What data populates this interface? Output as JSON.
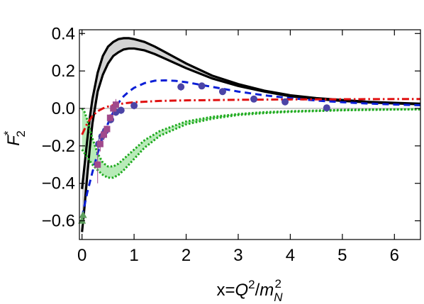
{
  "chart_data": {
    "type": "line",
    "title": "",
    "xlabel": {
      "prefix": "x=",
      "var": "Q",
      "sup": "2",
      "slash": "/",
      "den": "m",
      "sub": "N",
      "sup2": "2"
    },
    "ylabel": {
      "var": "F",
      "sub": "2",
      "sup": "*"
    },
    "xlim": [
      -0.05,
      6.5
    ],
    "ylim": [
      -0.7,
      0.42
    ],
    "xticks": [
      0,
      1,
      2,
      3,
      4,
      5,
      6
    ],
    "yticks": [
      0.4,
      0.2,
      0.0,
      -0.2,
      -0.4,
      -0.6
    ],
    "ytick_labels": [
      "0.4",
      "0.2",
      "0.0",
      "−0.2",
      "−0.4",
      "−0.6"
    ],
    "grid": false,
    "zero_line": true,
    "bands": [
      {
        "color": "#000000",
        "fill": "#d4d4d4",
        "style": "solid",
        "x": [
          0.0,
          0.05,
          0.1,
          0.15,
          0.2,
          0.3,
          0.4,
          0.5,
          0.6,
          0.7,
          0.8,
          0.9,
          1.0,
          1.2,
          1.4,
          1.6,
          1.8,
          2.0,
          2.5,
          3.0,
          3.5,
          4.0,
          4.5,
          5.0,
          5.5,
          6.0,
          6.5
        ],
        "upper": [
          -0.43,
          -0.3,
          -0.17,
          -0.05,
          0.05,
          0.19,
          0.28,
          0.33,
          0.355,
          0.37,
          0.375,
          0.375,
          0.37,
          0.355,
          0.33,
          0.3,
          0.27,
          0.24,
          0.175,
          0.13,
          0.095,
          0.07,
          0.055,
          0.045,
          0.035,
          0.03,
          0.025
        ],
        "lower": [
          -0.66,
          -0.52,
          -0.36,
          -0.21,
          -0.08,
          0.09,
          0.18,
          0.24,
          0.28,
          0.3,
          0.315,
          0.32,
          0.32,
          0.31,
          0.29,
          0.265,
          0.24,
          0.215,
          0.16,
          0.12,
          0.09,
          0.065,
          0.05,
          0.04,
          0.032,
          0.027,
          0.022
        ]
      },
      {
        "color": "#1faa1f",
        "fill": "#b8ebb8",
        "style": "dotted",
        "x": [
          0.0,
          0.05,
          0.1,
          0.15,
          0.2,
          0.3,
          0.4,
          0.5,
          0.6,
          0.7,
          0.8,
          1.0,
          1.2,
          1.5,
          2.0,
          2.5,
          3.0,
          3.5,
          4.0,
          5.0,
          6.0,
          6.5
        ],
        "upper": [
          0.0,
          -0.02,
          -0.06,
          -0.11,
          -0.16,
          -0.24,
          -0.29,
          -0.31,
          -0.31,
          -0.295,
          -0.27,
          -0.22,
          -0.17,
          -0.12,
          -0.07,
          -0.045,
          -0.03,
          -0.02,
          -0.015,
          -0.008,
          -0.005,
          -0.004
        ],
        "lower": [
          -0.22,
          -0.24,
          -0.26,
          -0.28,
          -0.3,
          -0.33,
          -0.355,
          -0.37,
          -0.37,
          -0.355,
          -0.33,
          -0.27,
          -0.21,
          -0.145,
          -0.085,
          -0.055,
          -0.035,
          -0.025,
          -0.018,
          -0.01,
          -0.006,
          -0.005
        ]
      }
    ],
    "series": [
      {
        "color": "#0b1fd6",
        "style": "dashed",
        "x": [
          0.0,
          0.1,
          0.2,
          0.3,
          0.4,
          0.5,
          0.6,
          0.7,
          0.8,
          0.9,
          1.0,
          1.2,
          1.4,
          1.6,
          1.8,
          2.0,
          2.5,
          3.0,
          3.5,
          4.0,
          4.5,
          5.0,
          5.5,
          6.0,
          6.5
        ],
        "y": [
          -0.58,
          -0.45,
          -0.34,
          -0.24,
          -0.15,
          -0.08,
          -0.02,
          0.03,
          0.065,
          0.09,
          0.11,
          0.135,
          0.148,
          0.15,
          0.147,
          0.14,
          0.115,
          0.09,
          0.07,
          0.055,
          0.042,
          0.033,
          0.026,
          0.021,
          0.017
        ]
      },
      {
        "color": "#e01010",
        "style": "dashdot",
        "x": [
          0.0,
          0.1,
          0.2,
          0.3,
          0.4,
          0.5,
          0.6,
          0.8,
          1.0,
          1.5,
          2.0,
          3.0,
          4.0,
          5.0,
          6.0,
          6.5
        ],
        "y": [
          -0.14,
          -0.08,
          -0.04,
          -0.015,
          0.0,
          0.01,
          0.017,
          0.027,
          0.033,
          0.04,
          0.043,
          0.046,
          0.048,
          0.049,
          0.05,
          0.05
        ]
      }
    ],
    "points": [
      {
        "marker": "circle",
        "color": "#4b44a6",
        "x": [
          0.32,
          0.38,
          0.45,
          0.55,
          0.65,
          0.75,
          1.0,
          1.9,
          2.3,
          2.7,
          3.3,
          3.9,
          4.7
        ],
        "y": [
          -0.19,
          -0.15,
          -0.12,
          -0.06,
          -0.02,
          -0.01,
          0.015,
          0.115,
          0.12,
          0.09,
          0.05,
          0.035,
          0.003
        ],
        "err": [
          0.03,
          0.03,
          0.02,
          0.02,
          0.02,
          0.02,
          0.02,
          0.02,
          0.015,
          0.015,
          0.012,
          0.012,
          0.01
        ]
      },
      {
        "marker": "square",
        "color": "#a04a8c",
        "x": [
          0.3,
          0.35,
          0.42,
          0.48,
          0.54,
          0.6,
          0.65
        ],
        "y": [
          -0.3,
          -0.19,
          -0.14,
          -0.11,
          -0.05,
          0.0,
          0.02
        ],
        "err": [
          0.1,
          0.04,
          0.03,
          0.02,
          0.02,
          0.03,
          0.03
        ]
      },
      {
        "marker": "triangle",
        "color": "#5d9e5d",
        "x": [
          0.0,
          0.02
        ],
        "y": [
          -0.6,
          -0.57
        ],
        "err": [
          0.02,
          0.02
        ]
      }
    ]
  }
}
